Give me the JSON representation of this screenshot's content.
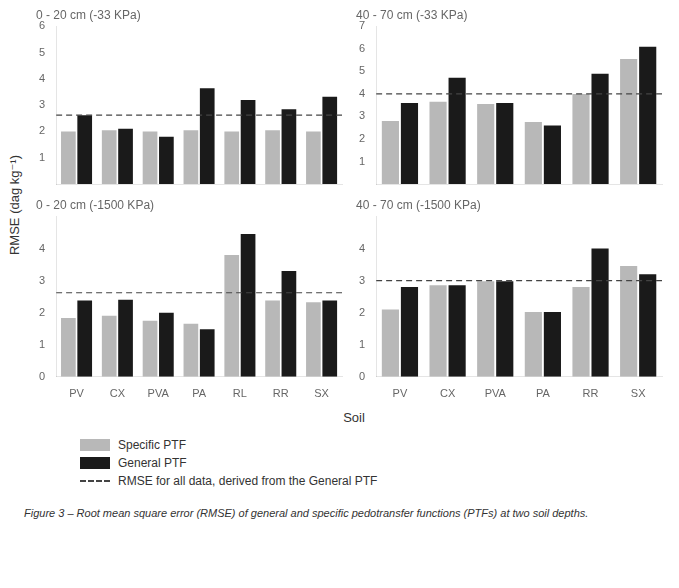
{
  "chart_data": [
    {
      "type": "bar",
      "title": "0 - 20 cm (-33 KPa)",
      "categories": [
        "PV",
        "CX",
        "PVA",
        "PA",
        "RL",
        "RR",
        "SX"
      ],
      "series": [
        {
          "name": "Specific PTF",
          "color": "#b8b8b8",
          "values": [
            2.0,
            2.05,
            2.0,
            2.05,
            2.0,
            2.05,
            2.0
          ]
        },
        {
          "name": "General PTF",
          "color": "#1a1a1a",
          "values": [
            2.62,
            2.1,
            1.8,
            3.65,
            3.2,
            2.85,
            3.32
          ]
        }
      ],
      "reference_line": {
        "name": "RMSE for all data, derived from the General PTF",
        "value": 2.62,
        "color": "#444444",
        "line_style": "dashed"
      },
      "ylim": [
        0,
        6
      ],
      "yticks": [
        1,
        2,
        3,
        4,
        5,
        6
      ],
      "grid": false,
      "tick_labels": "y"
    },
    {
      "type": "bar",
      "title": "40 - 70 cm (-33 KPa)",
      "categories": [
        "PV",
        "CX",
        "PVA",
        "PA",
        "RR",
        "SX"
      ],
      "series": [
        {
          "name": "Specific PTF",
          "color": "#b8b8b8",
          "values": [
            2.8,
            3.65,
            3.55,
            2.75,
            4.0,
            5.55
          ]
        },
        {
          "name": "General PTF",
          "color": "#1a1a1a",
          "values": [
            3.6,
            4.72,
            3.6,
            2.6,
            4.9,
            6.1
          ]
        }
      ],
      "reference_line": {
        "name": "RMSE for all data, derived from the General PTF",
        "value": 4.0,
        "color": "#444444",
        "line_style": "dashed"
      },
      "ylim": [
        0,
        7
      ],
      "yticks": [
        1,
        2,
        3,
        4,
        5,
        6,
        7
      ],
      "grid": false,
      "tick_labels": "y"
    },
    {
      "type": "bar",
      "title": "0 - 20 cm (-1500 KPa)",
      "categories": [
        "PV",
        "CX",
        "PVA",
        "PA",
        "RL",
        "RR",
        "SX"
      ],
      "series": [
        {
          "name": "Specific PTF",
          "color": "#b8b8b8",
          "values": [
            1.83,
            1.9,
            1.75,
            1.65,
            3.8,
            2.38,
            2.32
          ]
        },
        {
          "name": "General PTF",
          "color": "#1a1a1a",
          "values": [
            2.38,
            2.4,
            2.0,
            1.48,
            4.45,
            3.3,
            2.38
          ]
        }
      ],
      "reference_line": {
        "name": "RMSE for all data, derived from the General PTF",
        "value": 2.62,
        "color": "#444444",
        "line_style": "dashed"
      },
      "ylim": [
        0,
        5
      ],
      "yticks": [
        0,
        1,
        2,
        3,
        4
      ],
      "grid": false
    },
    {
      "type": "bar",
      "title": "40 - 70 cm (-1500 KPa)",
      "categories": [
        "PV",
        "CX",
        "PVA",
        "PA",
        "RR",
        "SX"
      ],
      "series": [
        {
          "name": "Specific PTF",
          "color": "#b8b8b8",
          "values": [
            2.1,
            2.85,
            2.98,
            2.02,
            2.8,
            3.45
          ]
        },
        {
          "name": "General PTF",
          "color": "#1a1a1a",
          "values": [
            2.8,
            2.85,
            2.98,
            2.02,
            4.0,
            3.2
          ]
        }
      ],
      "reference_line": {
        "name": "RMSE for all data, derived from the General PTF",
        "value": 3.0,
        "color": "#444444",
        "line_style": "dashed"
      },
      "ylim": [
        0,
        5
      ],
      "yticks": [
        0,
        1,
        2,
        3,
        4
      ],
      "grid": false
    }
  ],
  "ylabel": "RMSE (dag kg⁻¹)",
  "xlabel": "Soil",
  "caption": "Figure 3 – Root mean square error (RMSE) of general and specific pedotransfer functions (PTFs) at two soil depths."
}
